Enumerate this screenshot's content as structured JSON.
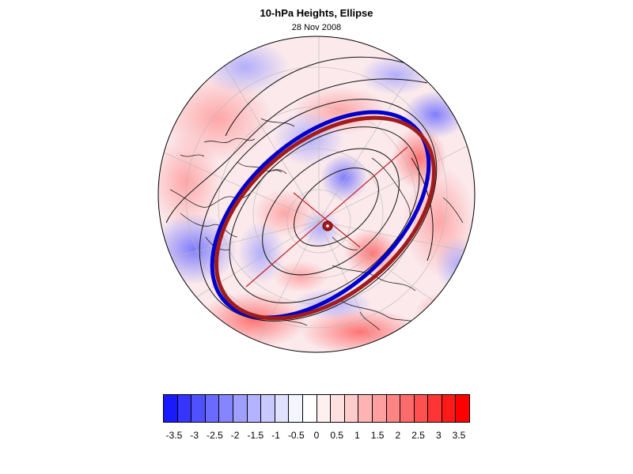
{
  "title": "10-hPa Heights, Ellipse",
  "subtitle": "28 Nov 2008",
  "colorbar": {
    "labels": [
      "-3.5",
      "-3",
      "-2.5",
      "-2",
      "-1.5",
      "-1",
      "-0.5",
      "0",
      "0.5",
      "1",
      "1.5",
      "2",
      "2.5",
      "3",
      "3.5"
    ],
    "colors": [
      "#1a1aff",
      "#3535ff",
      "#5050ff",
      "#6a6aff",
      "#8585ff",
      "#9f9fff",
      "#b3b3ff",
      "#c9c9ff",
      "#e0e0ff",
      "#f4f4ff",
      "#ffffff",
      "#fff0f0",
      "#ffe0e0",
      "#ffcccc",
      "#ffb3b3",
      "#ff9f9f",
      "#ff8585",
      "#ff6a6a",
      "#ff5050",
      "#ff3535",
      "#ff1a1a",
      "#ff0000"
    ]
  },
  "map": {
    "projection": "orthographic north polar",
    "ellipse_colors": {
      "diagnosed": "#a01c1c",
      "comparison": "#0000cc"
    }
  }
}
